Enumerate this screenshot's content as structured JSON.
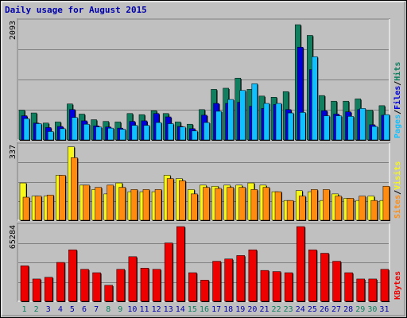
{
  "title": "Daily usage for August 2015",
  "colors": {
    "hits": "#0f7f5f",
    "files": "#0000dd",
    "pages": "#10c0ff",
    "visits": "#f7f71a",
    "sites": "#ff8c10",
    "kbytes": "#ee0000",
    "weekday_label": "#0000aa",
    "weekend_label": "#0f7f5f"
  },
  "chart_data": [
    {
      "type": "bar",
      "title": "Daily usage for August 2015",
      "ymax_label": "2093",
      "ylim": [
        0,
        2093
      ],
      "legend": [
        "Pages",
        "Files",
        "Hits"
      ],
      "categories": [
        "1",
        "2",
        "3",
        "4",
        "5",
        "6",
        "7",
        "8",
        "9",
        "10",
        "11",
        "12",
        "13",
        "14",
        "15",
        "16",
        "17",
        "18",
        "19",
        "20",
        "21",
        "22",
        "23",
        "24",
        "25",
        "26",
        "27",
        "28",
        "29",
        "30",
        "31"
      ],
      "weekend": [
        "1",
        "2",
        "8",
        "9",
        "15",
        "16",
        "22",
        "23",
        "29",
        "30"
      ],
      "series": [
        {
          "name": "Hits",
          "values": [
            530,
            480,
            300,
            320,
            640,
            460,
            360,
            330,
            320,
            470,
            450,
            520,
            470,
            320,
            280,
            540,
            900,
            920,
            1100,
            900,
            780,
            760,
            860,
            2050,
            1860,
            790,
            690,
            690,
            730,
            530,
            610
          ]
        },
        {
          "name": "Files",
          "values": [
            430,
            300,
            220,
            240,
            540,
            340,
            250,
            230,
            210,
            330,
            340,
            470,
            410,
            240,
            200,
            440,
            650,
            650,
            670,
            600,
            560,
            630,
            540,
            1650,
            1250,
            520,
            460,
            500,
            540,
            270,
            440
          ]
        },
        {
          "name": "Pages",
          "values": [
            380,
            290,
            150,
            200,
            400,
            280,
            230,
            210,
            190,
            260,
            260,
            310,
            290,
            230,
            160,
            310,
            510,
            720,
            880,
            1000,
            650,
            650,
            480,
            490,
            1480,
            430,
            430,
            420,
            560,
            240,
            450
          ]
        }
      ]
    },
    {
      "type": "bar",
      "ymax_label": "337",
      "ylim": [
        0,
        337
      ],
      "legend": [
        "Sites",
        "Visits"
      ],
      "categories": [
        "1",
        "2",
        "3",
        "4",
        "5",
        "6",
        "7",
        "8",
        "9",
        "10",
        "11",
        "12",
        "13",
        "14",
        "15",
        "16",
        "17",
        "18",
        "19",
        "20",
        "21",
        "22",
        "23",
        "24",
        "25",
        "26",
        "27",
        "28",
        "29",
        "30",
        "31"
      ],
      "series": [
        {
          "name": "Visits",
          "values": [
            170,
            110,
            110,
            205,
            335,
            160,
            140,
            120,
            170,
            130,
            130,
            130,
            205,
            190,
            140,
            160,
            155,
            160,
            160,
            170,
            160,
            130,
            90,
            135,
            130,
            90,
            120,
            100,
            90,
            110,
            90
          ]
        },
        {
          "name": "Sites",
          "values": [
            105,
            110,
            115,
            205,
            285,
            160,
            150,
            160,
            150,
            140,
            140,
            140,
            190,
            180,
            120,
            150,
            145,
            150,
            150,
            140,
            150,
            130,
            90,
            110,
            140,
            140,
            110,
            100,
            110,
            90,
            155
          ]
        }
      ]
    },
    {
      "type": "bar",
      "ymax_label": "65284",
      "ylim": [
        0,
        65284
      ],
      "legend": [
        "KBytes"
      ],
      "categories": [
        "1",
        "2",
        "3",
        "4",
        "5",
        "6",
        "7",
        "8",
        "9",
        "10",
        "11",
        "12",
        "13",
        "14",
        "15",
        "16",
        "17",
        "18",
        "19",
        "20",
        "21",
        "22",
        "23",
        "24",
        "25",
        "26",
        "27",
        "28",
        "29",
        "30",
        "31"
      ],
      "series": [
        {
          "name": "KBytes",
          "values": [
            31000,
            19500,
            21000,
            34000,
            45000,
            28000,
            25000,
            14000,
            28000,
            39000,
            29000,
            28000,
            51000,
            65284,
            25000,
            18500,
            35000,
            37000,
            40000,
            45000,
            27000,
            26000,
            25000,
            65284,
            45000,
            42000,
            35000,
            25000,
            19500,
            19500,
            28000
          ]
        }
      ]
    }
  ]
}
